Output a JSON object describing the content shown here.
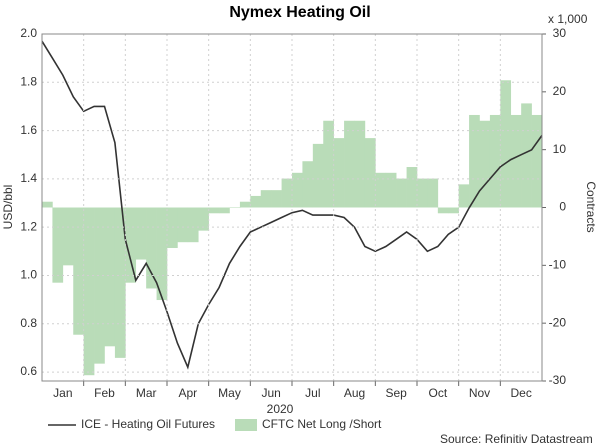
{
  "chart_data": {
    "type": "line",
    "title": "Nymex Heating Oil",
    "x_label": "2020",
    "y_label": "USD/bbl",
    "y2_label": "Contracts",
    "y2_unit": "x 1,000",
    "source": "Source: Refinitiv Datastream",
    "x": [
      0,
      0.25,
      0.5,
      0.75,
      1,
      1.25,
      1.5,
      1.75,
      2,
      2.25,
      2.5,
      2.75,
      3,
      3.25,
      3.5,
      3.75,
      4,
      4.25,
      4.5,
      4.75,
      5,
      5.25,
      5.5,
      5.75,
      6,
      6.25,
      6.5,
      6.75,
      7,
      7.25,
      7.5,
      7.75,
      8,
      8.25,
      8.5,
      8.75,
      9,
      9.25,
      9.5,
      9.75,
      10,
      10.25,
      10.5,
      10.75,
      11,
      11.25,
      11.5,
      11.75,
      12
    ],
    "xlim": [
      0,
      12
    ],
    "xticks": [
      {
        "value": 0.5,
        "label": "Jan"
      },
      {
        "value": 1.5,
        "label": "Feb"
      },
      {
        "value": 2.5,
        "label": "Mar"
      },
      {
        "value": 3.5,
        "label": "Apr"
      },
      {
        "value": 4.5,
        "label": "May"
      },
      {
        "value": 5.5,
        "label": "Jun"
      },
      {
        "value": 6.5,
        "label": "Jul"
      },
      {
        "value": 7.5,
        "label": "Aug"
      },
      {
        "value": 8.5,
        "label": "Sep"
      },
      {
        "value": 9.5,
        "label": "Oct"
      },
      {
        "value": 10.5,
        "label": "Nov"
      },
      {
        "value": 11.5,
        "label": "Dec"
      }
    ],
    "ylim": [
      0.563,
      2.0
    ],
    "yticks": [
      0.6,
      0.8,
      {
        "value": 1.0,
        "label": "1.0"
      },
      1.2,
      1.4,
      1.6,
      1.8,
      {
        "value": 2.0,
        "label": "2.0"
      }
    ],
    "y2lim": [
      -30,
      30
    ],
    "y2ticks": [
      -30,
      -20,
      -10,
      0,
      10,
      20,
      30
    ],
    "grid": true,
    "legend": "bottom",
    "series": [
      {
        "name": "CFTC Net Long /Short",
        "type": "step-area",
        "axis": "y2",
        "color": "#b9dcb8",
        "values": [
          1,
          -13,
          -10,
          -22,
          -29,
          -27,
          -24,
          -26,
          -13,
          -9,
          -14,
          -16,
          -7,
          -6,
          -6,
          -4,
          -1,
          -1,
          0,
          1,
          2,
          3,
          3,
          5,
          6,
          8,
          11,
          15,
          12,
          15,
          15,
          12,
          6,
          6,
          5,
          7,
          5,
          5,
          -1,
          -1,
          4,
          16,
          15,
          16,
          22,
          16,
          18,
          16,
          15
        ]
      },
      {
        "name": "ICE - Heating Oil Futures",
        "type": "line",
        "color": "#333333",
        "values": [
          1.97,
          1.9,
          1.83,
          1.74,
          1.68,
          1.7,
          1.7,
          1.55,
          1.15,
          0.98,
          1.05,
          0.97,
          0.85,
          0.72,
          0.62,
          0.8,
          0.88,
          0.95,
          1.05,
          1.12,
          1.18,
          1.2,
          1.22,
          1.24,
          1.26,
          1.27,
          1.25,
          1.25,
          1.25,
          1.24,
          1.2,
          1.12,
          1.1,
          1.12,
          1.15,
          1.18,
          1.15,
          1.1,
          1.12,
          1.17,
          1.2,
          1.28,
          1.35,
          1.4,
          1.45,
          1.48,
          1.5,
          1.52,
          1.58
        ]
      }
    ]
  }
}
